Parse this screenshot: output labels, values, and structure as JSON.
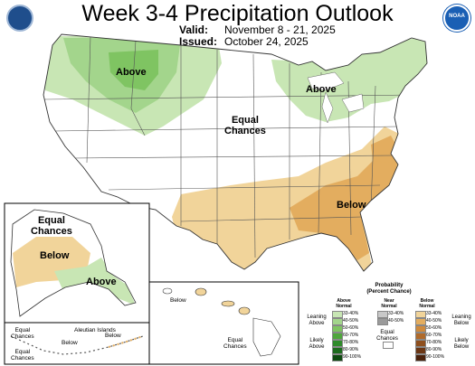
{
  "header": {
    "title": "Week 3-4 Precipitation Outlook",
    "valid_label": "Valid:",
    "valid_value": "November 8 - 21, 2025",
    "issued_label": "Issued:",
    "issued_value": "October 24, 2025"
  },
  "logos": {
    "left": "seal-icon",
    "right": "NOAA"
  },
  "colors": {
    "above_33_40": "#c8e6b4",
    "above_40_50": "#a3d58c",
    "above_50_60": "#7fc462",
    "below_33_40": "#f1d49a",
    "below_40_50": "#e3ad5f",
    "below_50_60": "#cf8a3c",
    "near": "#b0b0b0"
  },
  "conus_labels": {
    "above_northwest": "Above",
    "above_great_lakes": "Above",
    "equal_chances": "Equal\nChances",
    "below_southeast": "Below"
  },
  "alaska_labels": {
    "equal_chances": "Equal\nChances",
    "below": "Below",
    "above": "Above"
  },
  "aleutian_labels": {
    "title": "Aleutian Islands",
    "equal_chances_left": "Equal\nChances",
    "equal_chances_lower": "Equal\nChances",
    "below_center": "Below",
    "below_right": "Below"
  },
  "hawaii_labels": {
    "below": "Below",
    "equal_chances": "Equal\nChances"
  },
  "legend": {
    "title": "Probability\n(Percent Chance)",
    "above_header": "Above\nNormal",
    "near_header": "Near\nNormal",
    "below_header": "Below\nNormal",
    "leaning_above": "Leaning\nAbove",
    "likely_above": "Likely\nAbove",
    "leaning_below": "Leaning\nBelow",
    "likely_below": "Likely\nBelow",
    "equal_chances": "Equal\nChances",
    "above_rows": [
      {
        "label": "33-40%",
        "color": "#c8e6b4"
      },
      {
        "label": "40-50%",
        "color": "#a3d58c"
      },
      {
        "label": "50-60%",
        "color": "#7fc462"
      },
      {
        "label": "60-70%",
        "color": "#4fa63c"
      },
      {
        "label": "70-80%",
        "color": "#2f8a2a"
      },
      {
        "label": "80-90%",
        "color": "#1d6b1d"
      },
      {
        "label": "90-100%",
        "color": "#0e4a10"
      }
    ],
    "near_rows": [
      {
        "label": "33-40%",
        "color": "#c8c8c8"
      },
      {
        "label": "40-50%",
        "color": "#9a9a9a"
      }
    ],
    "below_rows": [
      {
        "label": "33-40%",
        "color": "#f1d49a"
      },
      {
        "label": "40-50%",
        "color": "#e3ad5f"
      },
      {
        "label": "50-60%",
        "color": "#cf8a3c"
      },
      {
        "label": "60-70%",
        "color": "#b06a2a"
      },
      {
        "label": "70-80%",
        "color": "#8e4f1e"
      },
      {
        "label": "80-90%",
        "color": "#6b3614"
      },
      {
        "label": "90-100%",
        "color": "#4a220c"
      }
    ]
  }
}
